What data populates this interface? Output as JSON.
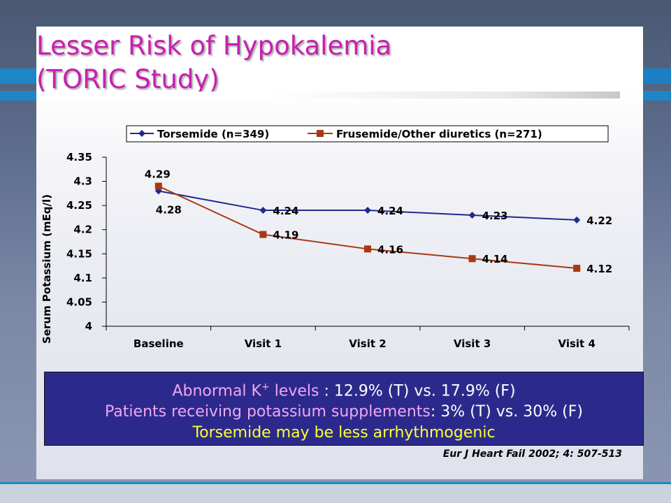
{
  "slide": {
    "title_line1": "Lesser Risk of Hypokalemia",
    "title_line2": "(TORIC Study)",
    "colors": {
      "title": "#c81fb0",
      "accent_stripe": "#1e86c7",
      "box_background": "#2b2a8c",
      "pink_text": "#f3a6f0",
      "yellow_text": "#ffff33"
    }
  },
  "chart_data": {
    "type": "line",
    "title": "",
    "xlabel": "",
    "ylabel": "Serum Potassium (mEq/l)",
    "categories": [
      "Baseline",
      "Visit 1",
      "Visit 2",
      "Visit 3",
      "Visit 4"
    ],
    "ylim": [
      4,
      4.35
    ],
    "yticks": [
      "4.35",
      "4.3",
      "4.25",
      "4.2",
      "4.15",
      "4.1",
      "4.05",
      "4"
    ],
    "ytick_values": [
      4.35,
      4.3,
      4.25,
      4.2,
      4.15,
      4.1,
      4.05,
      4.0
    ],
    "grid": false,
    "legend_position": "top",
    "series": [
      {
        "name": "Torsemide (n=349)",
        "color": "#1f2b8c",
        "marker": "diamond",
        "values": [
          4.28,
          4.24,
          4.24,
          4.23,
          4.22
        ],
        "labels": [
          "4.28",
          "4.24",
          "4.24",
          "4.23",
          "4.22"
        ]
      },
      {
        "name": "Frusemide/Other diuretics (n=271)",
        "color": "#a63a14",
        "marker": "square",
        "values": [
          4.29,
          4.19,
          4.16,
          4.14,
          4.12
        ],
        "labels": [
          "4.29",
          "4.19",
          "4.16",
          "4.14",
          "4.12"
        ]
      }
    ]
  },
  "summary": {
    "line1_highlight": "Abnormal K",
    "line1_sup": "+",
    "line1_highlight_end": " levels",
    "line1_rest": " : 12.9% (T) vs. 17.9% (F)",
    "line2_highlight": "Patients receiving potassium supplements",
    "line2_rest": ": 3% (T) vs. 30% (F)",
    "line3": "Torsemide may be less arrhythmogenic"
  },
  "citation": "Eur J Heart Fail 2002; 4: 507-513"
}
